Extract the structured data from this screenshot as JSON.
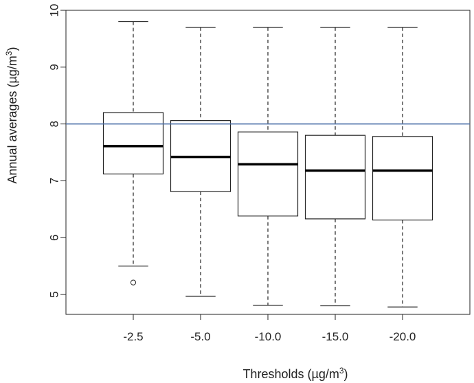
{
  "chart_data": {
    "type": "box",
    "xlabel": "Thresholds (µg/m",
    "xlabel_sup": "3",
    "xlabel_end": ")",
    "ylabel": "Annual averages (µg/m",
    "ylabel_sup": "3",
    "ylabel_end": ")",
    "ylim": [
      4.65,
      10.0
    ],
    "yticks": [
      "5",
      "6",
      "7",
      "8",
      "9",
      "10"
    ],
    "reference_line": {
      "y": 8.0,
      "color": "#4a6fa8"
    },
    "categories": [
      "-2.5",
      "-5.0",
      "-10.0",
      "-15.0",
      "-20.0"
    ],
    "boxes": [
      {
        "label": "-2.5",
        "min": 5.5,
        "q1": 7.12,
        "median": 7.61,
        "q3": 8.2,
        "max": 9.8,
        "outliers": [
          5.21
        ]
      },
      {
        "label": "-5.0",
        "min": 4.97,
        "q1": 6.81,
        "median": 7.42,
        "q3": 8.06,
        "max": 9.7,
        "outliers": []
      },
      {
        "label": "-10.0",
        "min": 4.81,
        "q1": 6.38,
        "median": 7.29,
        "q3": 7.86,
        "max": 9.7,
        "outliers": []
      },
      {
        "label": "-15.0",
        "min": 4.8,
        "q1": 6.33,
        "median": 7.18,
        "q3": 7.8,
        "max": 9.7,
        "outliers": []
      },
      {
        "label": "-20.0",
        "min": 4.78,
        "q1": 6.31,
        "median": 7.18,
        "q3": 7.78,
        "max": 9.7,
        "outliers": []
      }
    ],
    "grid": false,
    "legend": "none"
  }
}
